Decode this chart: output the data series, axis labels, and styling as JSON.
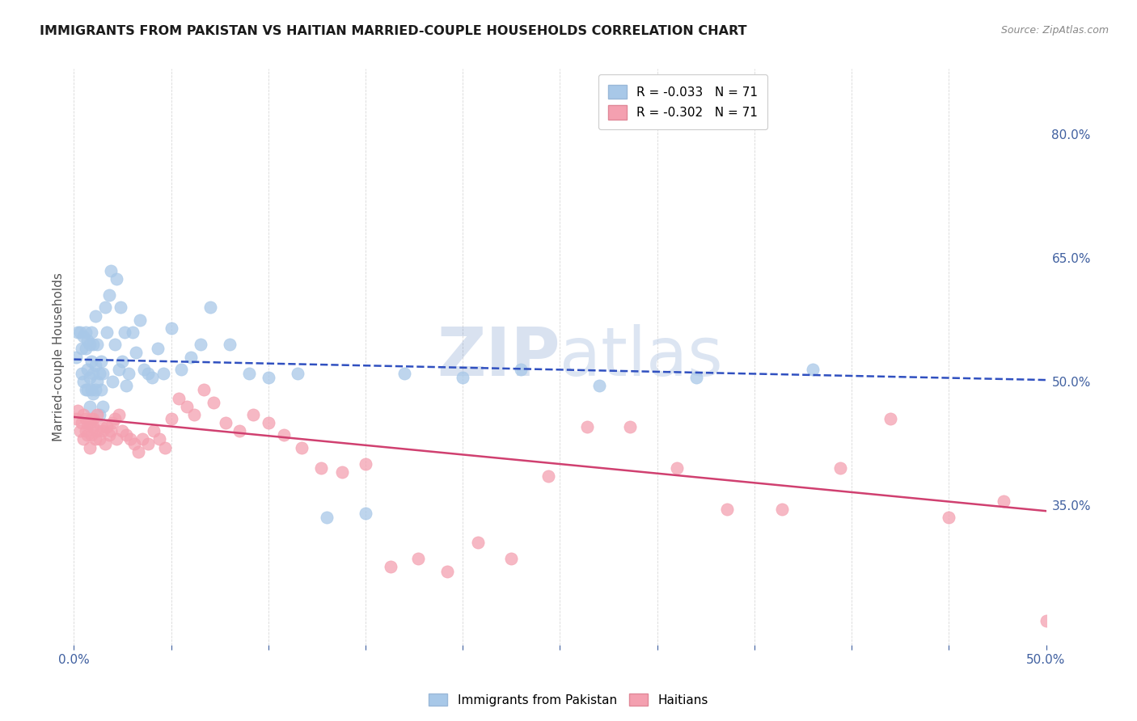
{
  "title": "IMMIGRANTS FROM PAKISTAN VS HAITIAN MARRIED-COUPLE HOUSEHOLDS CORRELATION CHART",
  "source": "Source: ZipAtlas.com",
  "ylabel": "Married-couple Households",
  "right_ytick_vals": [
    0.8,
    0.65,
    0.5,
    0.35
  ],
  "right_ytick_labels": [
    "80.0%",
    "65.0%",
    "50.0%",
    "35.0%"
  ],
  "legend_blue_label": "R = -0.033   N = 71",
  "legend_pink_label": "R = -0.302   N = 71",
  "blue_color": "#a8c8e8",
  "pink_color": "#f4a0b0",
  "trend_blue_color": "#3050c0",
  "trend_pink_color": "#d04070",
  "blue_scatter_x": [
    0.001,
    0.002,
    0.003,
    0.004,
    0.004,
    0.005,
    0.005,
    0.006,
    0.006,
    0.006,
    0.007,
    0.007,
    0.007,
    0.008,
    0.008,
    0.008,
    0.009,
    0.009,
    0.009,
    0.01,
    0.01,
    0.01,
    0.011,
    0.011,
    0.011,
    0.012,
    0.012,
    0.013,
    0.013,
    0.014,
    0.014,
    0.015,
    0.015,
    0.016,
    0.017,
    0.018,
    0.019,
    0.02,
    0.021,
    0.022,
    0.023,
    0.024,
    0.025,
    0.026,
    0.027,
    0.028,
    0.03,
    0.032,
    0.034,
    0.036,
    0.038,
    0.04,
    0.043,
    0.046,
    0.05,
    0.055,
    0.06,
    0.065,
    0.07,
    0.08,
    0.09,
    0.1,
    0.115,
    0.13,
    0.15,
    0.17,
    0.2,
    0.23,
    0.27,
    0.32,
    0.38
  ],
  "blue_scatter_y": [
    0.53,
    0.56,
    0.56,
    0.51,
    0.54,
    0.5,
    0.555,
    0.49,
    0.54,
    0.56,
    0.49,
    0.515,
    0.55,
    0.47,
    0.505,
    0.545,
    0.49,
    0.525,
    0.56,
    0.485,
    0.51,
    0.545,
    0.49,
    0.52,
    0.58,
    0.5,
    0.545,
    0.46,
    0.51,
    0.49,
    0.525,
    0.47,
    0.51,
    0.59,
    0.56,
    0.605,
    0.635,
    0.5,
    0.545,
    0.625,
    0.515,
    0.59,
    0.525,
    0.56,
    0.495,
    0.51,
    0.56,
    0.535,
    0.575,
    0.515,
    0.51,
    0.505,
    0.54,
    0.51,
    0.565,
    0.515,
    0.53,
    0.545,
    0.59,
    0.545,
    0.51,
    0.505,
    0.51,
    0.335,
    0.34,
    0.51,
    0.505,
    0.515,
    0.495,
    0.505,
    0.515
  ],
  "pink_scatter_x": [
    0.001,
    0.002,
    0.003,
    0.004,
    0.005,
    0.005,
    0.006,
    0.006,
    0.007,
    0.007,
    0.008,
    0.008,
    0.009,
    0.009,
    0.01,
    0.01,
    0.011,
    0.012,
    0.012,
    0.013,
    0.014,
    0.015,
    0.016,
    0.017,
    0.018,
    0.019,
    0.02,
    0.021,
    0.022,
    0.023,
    0.025,
    0.027,
    0.029,
    0.031,
    0.033,
    0.035,
    0.038,
    0.041,
    0.044,
    0.047,
    0.05,
    0.054,
    0.058,
    0.062,
    0.067,
    0.072,
    0.078,
    0.085,
    0.092,
    0.1,
    0.108,
    0.117,
    0.127,
    0.138,
    0.15,
    0.163,
    0.177,
    0.192,
    0.208,
    0.225,
    0.244,
    0.264,
    0.286,
    0.31,
    0.336,
    0.364,
    0.394,
    0.42,
    0.45,
    0.478,
    0.5
  ],
  "pink_scatter_y": [
    0.455,
    0.465,
    0.44,
    0.45,
    0.43,
    0.46,
    0.44,
    0.455,
    0.435,
    0.45,
    0.42,
    0.45,
    0.435,
    0.455,
    0.445,
    0.455,
    0.43,
    0.44,
    0.46,
    0.43,
    0.445,
    0.44,
    0.425,
    0.445,
    0.435,
    0.44,
    0.45,
    0.455,
    0.43,
    0.46,
    0.44,
    0.435,
    0.43,
    0.425,
    0.415,
    0.43,
    0.425,
    0.44,
    0.43,
    0.42,
    0.455,
    0.48,
    0.47,
    0.46,
    0.49,
    0.475,
    0.45,
    0.44,
    0.46,
    0.45,
    0.435,
    0.42,
    0.395,
    0.39,
    0.4,
    0.275,
    0.285,
    0.27,
    0.305,
    0.285,
    0.385,
    0.445,
    0.445,
    0.395,
    0.345,
    0.345,
    0.395,
    0.455,
    0.335,
    0.355,
    0.21
  ],
  "blue_trend_x": [
    0.0,
    0.5
  ],
  "blue_trend_y": [
    0.527,
    0.502
  ],
  "pink_trend_x": [
    0.0,
    0.5
  ],
  "pink_trend_y": [
    0.457,
    0.343
  ],
  "xlim": [
    0.0,
    0.5
  ],
  "ylim": [
    0.18,
    0.88
  ],
  "background_color": "#ffffff",
  "grid_color": "#d8d8d8",
  "zip_color": "#3060b0",
  "atlas_color": "#c0d0e8"
}
